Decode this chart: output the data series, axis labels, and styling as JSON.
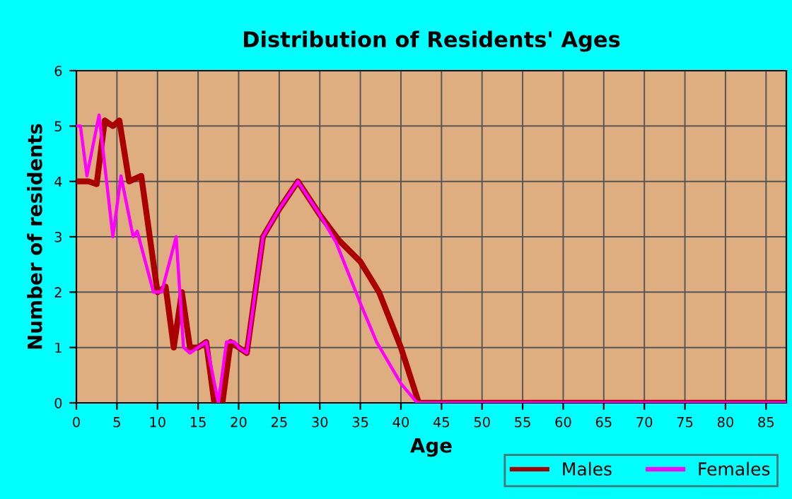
{
  "chart_data": {
    "type": "line",
    "title": "Distribution of Residents' Ages",
    "xlabel": "Age",
    "ylabel": "Number of residents",
    "xlim": [
      0,
      87.5
    ],
    "xticks": [
      0,
      5,
      10,
      15,
      20,
      25,
      30,
      35,
      40,
      45,
      50,
      55,
      60,
      65,
      70,
      75,
      80,
      85
    ],
    "ylim": [
      0,
      6
    ],
    "yticks": [
      0,
      1,
      2,
      3,
      4,
      5,
      6
    ],
    "grid": true,
    "legend": "bottom right",
    "marker": "none",
    "line_style": "solid",
    "series": [
      {
        "name": "Males",
        "color": "#aa0000",
        "x": [
          0,
          1.5,
          2.5,
          3.5,
          4.5,
          5.3,
          6.5,
          8,
          10,
          11,
          12,
          13,
          14,
          15,
          16,
          17,
          18,
          19,
          20,
          21,
          23,
          25,
          27.3,
          30,
          32.4,
          35,
          37.3,
          40,
          42.2,
          45,
          87.5
        ],
        "values": [
          4,
          4,
          3.95,
          5.1,
          5,
          5.1,
          4,
          4.1,
          2,
          2.1,
          1,
          2,
          1,
          1,
          1.1,
          0,
          0,
          1.1,
          1,
          0.9,
          3,
          3.5,
          4,
          3.4,
          2.93,
          2.55,
          2,
          1,
          0,
          0,
          0
        ]
      },
      {
        "name": "Females",
        "color": "#ff00ff",
        "x": [
          0,
          0.5,
          1.3,
          2.8,
          4.5,
          5.5,
          7,
          7.5,
          9.5,
          10.5,
          12.3,
          13.2,
          14,
          15,
          16,
          17.5,
          18.5,
          19.5,
          20,
          21,
          23,
          25,
          27.3,
          30,
          32,
          35,
          37,
          40,
          42,
          45,
          87.5
        ],
        "values": [
          5,
          5,
          4.1,
          5.2,
          3,
          4.1,
          3,
          3.1,
          2,
          2,
          3,
          1,
          0.9,
          1,
          1.1,
          0,
          1.1,
          1.1,
          1,
          0.9,
          3,
          3.5,
          4,
          3.4,
          2.9,
          1.8,
          1.1,
          0.35,
          0,
          0,
          0
        ]
      }
    ]
  }
}
